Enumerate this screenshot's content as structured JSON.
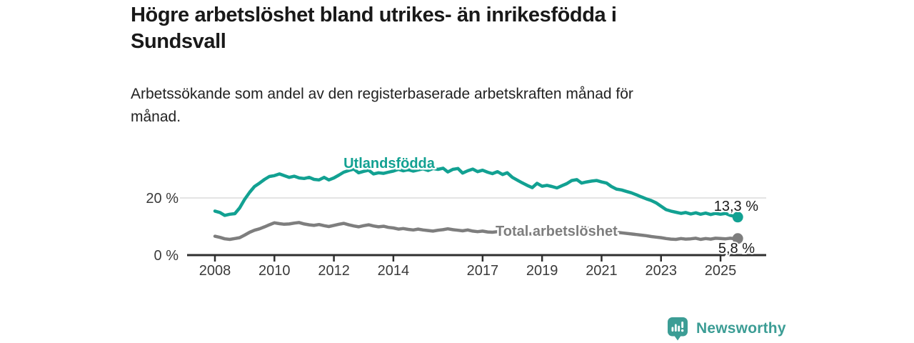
{
  "header": {
    "title_line1": "Högre arbetslöshet bland utrikes- än inrikesfödda i",
    "title_line2": "Sundsvall",
    "subtitle_line1": "Arbetssökande som andel av den registerbaserade arbetskraften månad för",
    "subtitle_line2": "månad."
  },
  "footer": {
    "brand": "Newsworthy",
    "logo_icon": "bar-chart-speech-bubble-icon"
  },
  "colors": {
    "teal": "#12a192",
    "gray": "#7e7e7e",
    "axis": "#2f2f2f",
    "grid": "#dcdcdc",
    "value_label": "#1a1a1a",
    "brand_teal": "#3c9d95"
  },
  "chart_data": {
    "type": "line",
    "title": "Högre arbetslöshet bland utrikes- än inrikesfödda i Sundsvall",
    "subtitle": "Arbetssökande som andel av den registerbaserade arbetskraften månad för månad.",
    "xlabel": "",
    "ylabel": "",
    "xlim": [
      2007.9,
      2026.3
    ],
    "ylim": [
      0,
      34
    ],
    "grid": "y-at-20-only",
    "legend_position": "inline-labels",
    "y_ticks": [
      {
        "value": 20,
        "label": "20 %"
      },
      {
        "value": 0,
        "label": "0 %"
      }
    ],
    "x_ticks": [
      {
        "year": 2008,
        "label": "2008"
      },
      {
        "year": 2010,
        "label": "2010"
      },
      {
        "year": 2012,
        "label": "2012"
      },
      {
        "year": 2014,
        "label": "2014"
      },
      {
        "year": 2017,
        "label": "2017"
      },
      {
        "year": 2019,
        "label": "2019"
      },
      {
        "year": 2021,
        "label": "2021"
      },
      {
        "year": 2023,
        "label": "2023"
      },
      {
        "year": 2025,
        "label": "2025"
      }
    ],
    "series": [
      {
        "name": "Utlandsfödda",
        "color_key": "teal",
        "end_label": "13,3 %",
        "end_value": 13.3,
        "points": [
          [
            2008.0,
            15.4
          ],
          [
            2008.17,
            14.9
          ],
          [
            2008.33,
            13.9
          ],
          [
            2008.5,
            14.3
          ],
          [
            2008.67,
            14.5
          ],
          [
            2008.83,
            16.5
          ],
          [
            2009.0,
            19.5
          ],
          [
            2009.17,
            22.0
          ],
          [
            2009.33,
            24.0
          ],
          [
            2009.5,
            25.2
          ],
          [
            2009.67,
            26.5
          ],
          [
            2009.83,
            27.5
          ],
          [
            2010.0,
            27.8
          ],
          [
            2010.17,
            28.4
          ],
          [
            2010.33,
            27.8
          ],
          [
            2010.5,
            27.2
          ],
          [
            2010.67,
            27.6
          ],
          [
            2010.83,
            27.0
          ],
          [
            2011.0,
            26.8
          ],
          [
            2011.17,
            27.2
          ],
          [
            2011.33,
            26.5
          ],
          [
            2011.5,
            26.3
          ],
          [
            2011.67,
            27.2
          ],
          [
            2011.83,
            26.3
          ],
          [
            2012.0,
            27.0
          ],
          [
            2012.17,
            28.0
          ],
          [
            2012.33,
            29.0
          ],
          [
            2012.5,
            29.6
          ],
          [
            2012.67,
            30.1
          ],
          [
            2012.83,
            28.8
          ],
          [
            2013.0,
            29.3
          ],
          [
            2013.17,
            29.7
          ],
          [
            2013.33,
            28.4
          ],
          [
            2013.5,
            28.8
          ],
          [
            2013.67,
            28.6
          ],
          [
            2013.83,
            29.0
          ],
          [
            2014.0,
            29.4
          ],
          [
            2014.17,
            30.0
          ],
          [
            2014.33,
            29.5
          ],
          [
            2014.5,
            29.9
          ],
          [
            2014.67,
            29.4
          ],
          [
            2014.83,
            29.8
          ],
          [
            2015.0,
            30.2
          ],
          [
            2015.17,
            29.6
          ],
          [
            2015.33,
            30.3
          ],
          [
            2015.5,
            30.0
          ],
          [
            2015.67,
            30.4
          ],
          [
            2015.83,
            29.1
          ],
          [
            2016.0,
            30.0
          ],
          [
            2016.17,
            30.3
          ],
          [
            2016.33,
            28.7
          ],
          [
            2016.5,
            29.5
          ],
          [
            2016.67,
            30.1
          ],
          [
            2016.83,
            29.2
          ],
          [
            2017.0,
            29.7
          ],
          [
            2017.17,
            29.0
          ],
          [
            2017.33,
            28.5
          ],
          [
            2017.5,
            29.2
          ],
          [
            2017.67,
            28.2
          ],
          [
            2017.83,
            28.8
          ],
          [
            2018.0,
            27.2
          ],
          [
            2018.17,
            26.2
          ],
          [
            2018.33,
            25.3
          ],
          [
            2018.5,
            24.4
          ],
          [
            2018.67,
            23.6
          ],
          [
            2018.83,
            25.1
          ],
          [
            2019.0,
            24.1
          ],
          [
            2019.17,
            24.4
          ],
          [
            2019.33,
            24.0
          ],
          [
            2019.5,
            23.5
          ],
          [
            2019.67,
            24.3
          ],
          [
            2019.83,
            25.0
          ],
          [
            2020.0,
            26.1
          ],
          [
            2020.17,
            26.4
          ],
          [
            2020.33,
            25.2
          ],
          [
            2020.5,
            25.6
          ],
          [
            2020.67,
            25.9
          ],
          [
            2020.83,
            26.1
          ],
          [
            2021.0,
            25.6
          ],
          [
            2021.17,
            25.2
          ],
          [
            2021.33,
            24.0
          ],
          [
            2021.5,
            23.1
          ],
          [
            2021.67,
            22.8
          ],
          [
            2021.83,
            22.3
          ],
          [
            2022.0,
            21.8
          ],
          [
            2022.17,
            21.1
          ],
          [
            2022.33,
            20.4
          ],
          [
            2022.5,
            19.7
          ],
          [
            2022.67,
            19.1
          ],
          [
            2022.83,
            18.3
          ],
          [
            2023.0,
            17.1
          ],
          [
            2023.17,
            15.9
          ],
          [
            2023.33,
            15.4
          ],
          [
            2023.5,
            15.0
          ],
          [
            2023.67,
            14.6
          ],
          [
            2023.83,
            14.9
          ],
          [
            2024.0,
            14.4
          ],
          [
            2024.17,
            14.8
          ],
          [
            2024.33,
            14.3
          ],
          [
            2024.5,
            14.7
          ],
          [
            2024.67,
            14.2
          ],
          [
            2024.83,
            14.6
          ],
          [
            2025.0,
            14.3
          ],
          [
            2025.17,
            14.6
          ],
          [
            2025.33,
            13.9
          ],
          [
            2025.5,
            13.5
          ],
          [
            2025.58,
            13.3
          ]
        ]
      },
      {
        "name": "Total arbetslöshet",
        "color_key": "gray",
        "end_label": "5,8 %",
        "end_value": 5.8,
        "points": [
          [
            2008.0,
            6.6
          ],
          [
            2008.17,
            6.2
          ],
          [
            2008.33,
            5.7
          ],
          [
            2008.5,
            5.5
          ],
          [
            2008.67,
            5.8
          ],
          [
            2008.83,
            6.1
          ],
          [
            2009.0,
            7.0
          ],
          [
            2009.17,
            8.0
          ],
          [
            2009.33,
            8.7
          ],
          [
            2009.5,
            9.2
          ],
          [
            2009.67,
            9.9
          ],
          [
            2009.83,
            10.6
          ],
          [
            2010.0,
            11.3
          ],
          [
            2010.17,
            11.0
          ],
          [
            2010.33,
            10.8
          ],
          [
            2010.5,
            10.9
          ],
          [
            2010.67,
            11.2
          ],
          [
            2010.83,
            11.4
          ],
          [
            2011.0,
            10.9
          ],
          [
            2011.17,
            10.6
          ],
          [
            2011.33,
            10.4
          ],
          [
            2011.5,
            10.7
          ],
          [
            2011.67,
            10.3
          ],
          [
            2011.83,
            10.0
          ],
          [
            2012.0,
            10.4
          ],
          [
            2012.17,
            10.8
          ],
          [
            2012.33,
            11.1
          ],
          [
            2012.5,
            10.6
          ],
          [
            2012.67,
            10.2
          ],
          [
            2012.83,
            9.9
          ],
          [
            2013.0,
            10.3
          ],
          [
            2013.17,
            10.6
          ],
          [
            2013.33,
            10.2
          ],
          [
            2013.5,
            9.9
          ],
          [
            2013.67,
            10.1
          ],
          [
            2013.83,
            9.7
          ],
          [
            2014.0,
            9.5
          ],
          [
            2014.17,
            9.1
          ],
          [
            2014.33,
            9.3
          ],
          [
            2014.5,
            9.0
          ],
          [
            2014.67,
            8.8
          ],
          [
            2014.83,
            9.1
          ],
          [
            2015.0,
            8.8
          ],
          [
            2015.17,
            8.6
          ],
          [
            2015.33,
            8.4
          ],
          [
            2015.5,
            8.7
          ],
          [
            2015.67,
            8.9
          ],
          [
            2015.83,
            9.2
          ],
          [
            2016.0,
            8.9
          ],
          [
            2016.17,
            8.7
          ],
          [
            2016.33,
            8.5
          ],
          [
            2016.5,
            8.8
          ],
          [
            2016.67,
            8.4
          ],
          [
            2016.83,
            8.2
          ],
          [
            2017.0,
            8.4
          ],
          [
            2017.17,
            8.1
          ],
          [
            2017.33,
            8.0
          ],
          [
            2017.5,
            8.2
          ],
          [
            2017.67,
            7.9
          ],
          [
            2017.83,
            7.8
          ],
          [
            2018.0,
            7.7
          ],
          [
            2018.33,
            7.5
          ],
          [
            2018.67,
            7.4
          ],
          [
            2019.0,
            7.3
          ],
          [
            2019.33,
            7.2
          ],
          [
            2019.67,
            7.4
          ],
          [
            2020.0,
            8.0
          ],
          [
            2020.25,
            9.2
          ],
          [
            2020.5,
            9.4
          ],
          [
            2020.75,
            9.1
          ],
          [
            2021.0,
            8.8
          ],
          [
            2021.25,
            8.4
          ],
          [
            2021.5,
            8.0
          ],
          [
            2021.75,
            7.7
          ],
          [
            2022.0,
            7.4
          ],
          [
            2022.17,
            7.2
          ],
          [
            2022.33,
            7.0
          ],
          [
            2022.5,
            6.8
          ],
          [
            2022.67,
            6.5
          ],
          [
            2022.83,
            6.3
          ],
          [
            2023.0,
            6.1
          ],
          [
            2023.17,
            5.8
          ],
          [
            2023.33,
            5.6
          ],
          [
            2023.5,
            5.5
          ],
          [
            2023.67,
            5.8
          ],
          [
            2023.83,
            5.6
          ],
          [
            2024.0,
            5.7
          ],
          [
            2024.17,
            5.9
          ],
          [
            2024.33,
            5.5
          ],
          [
            2024.5,
            5.8
          ],
          [
            2024.67,
            5.6
          ],
          [
            2024.83,
            5.9
          ],
          [
            2025.0,
            5.8
          ],
          [
            2025.17,
            5.7
          ],
          [
            2025.33,
            5.9
          ],
          [
            2025.5,
            5.7
          ],
          [
            2025.58,
            5.8
          ]
        ]
      }
    ]
  }
}
